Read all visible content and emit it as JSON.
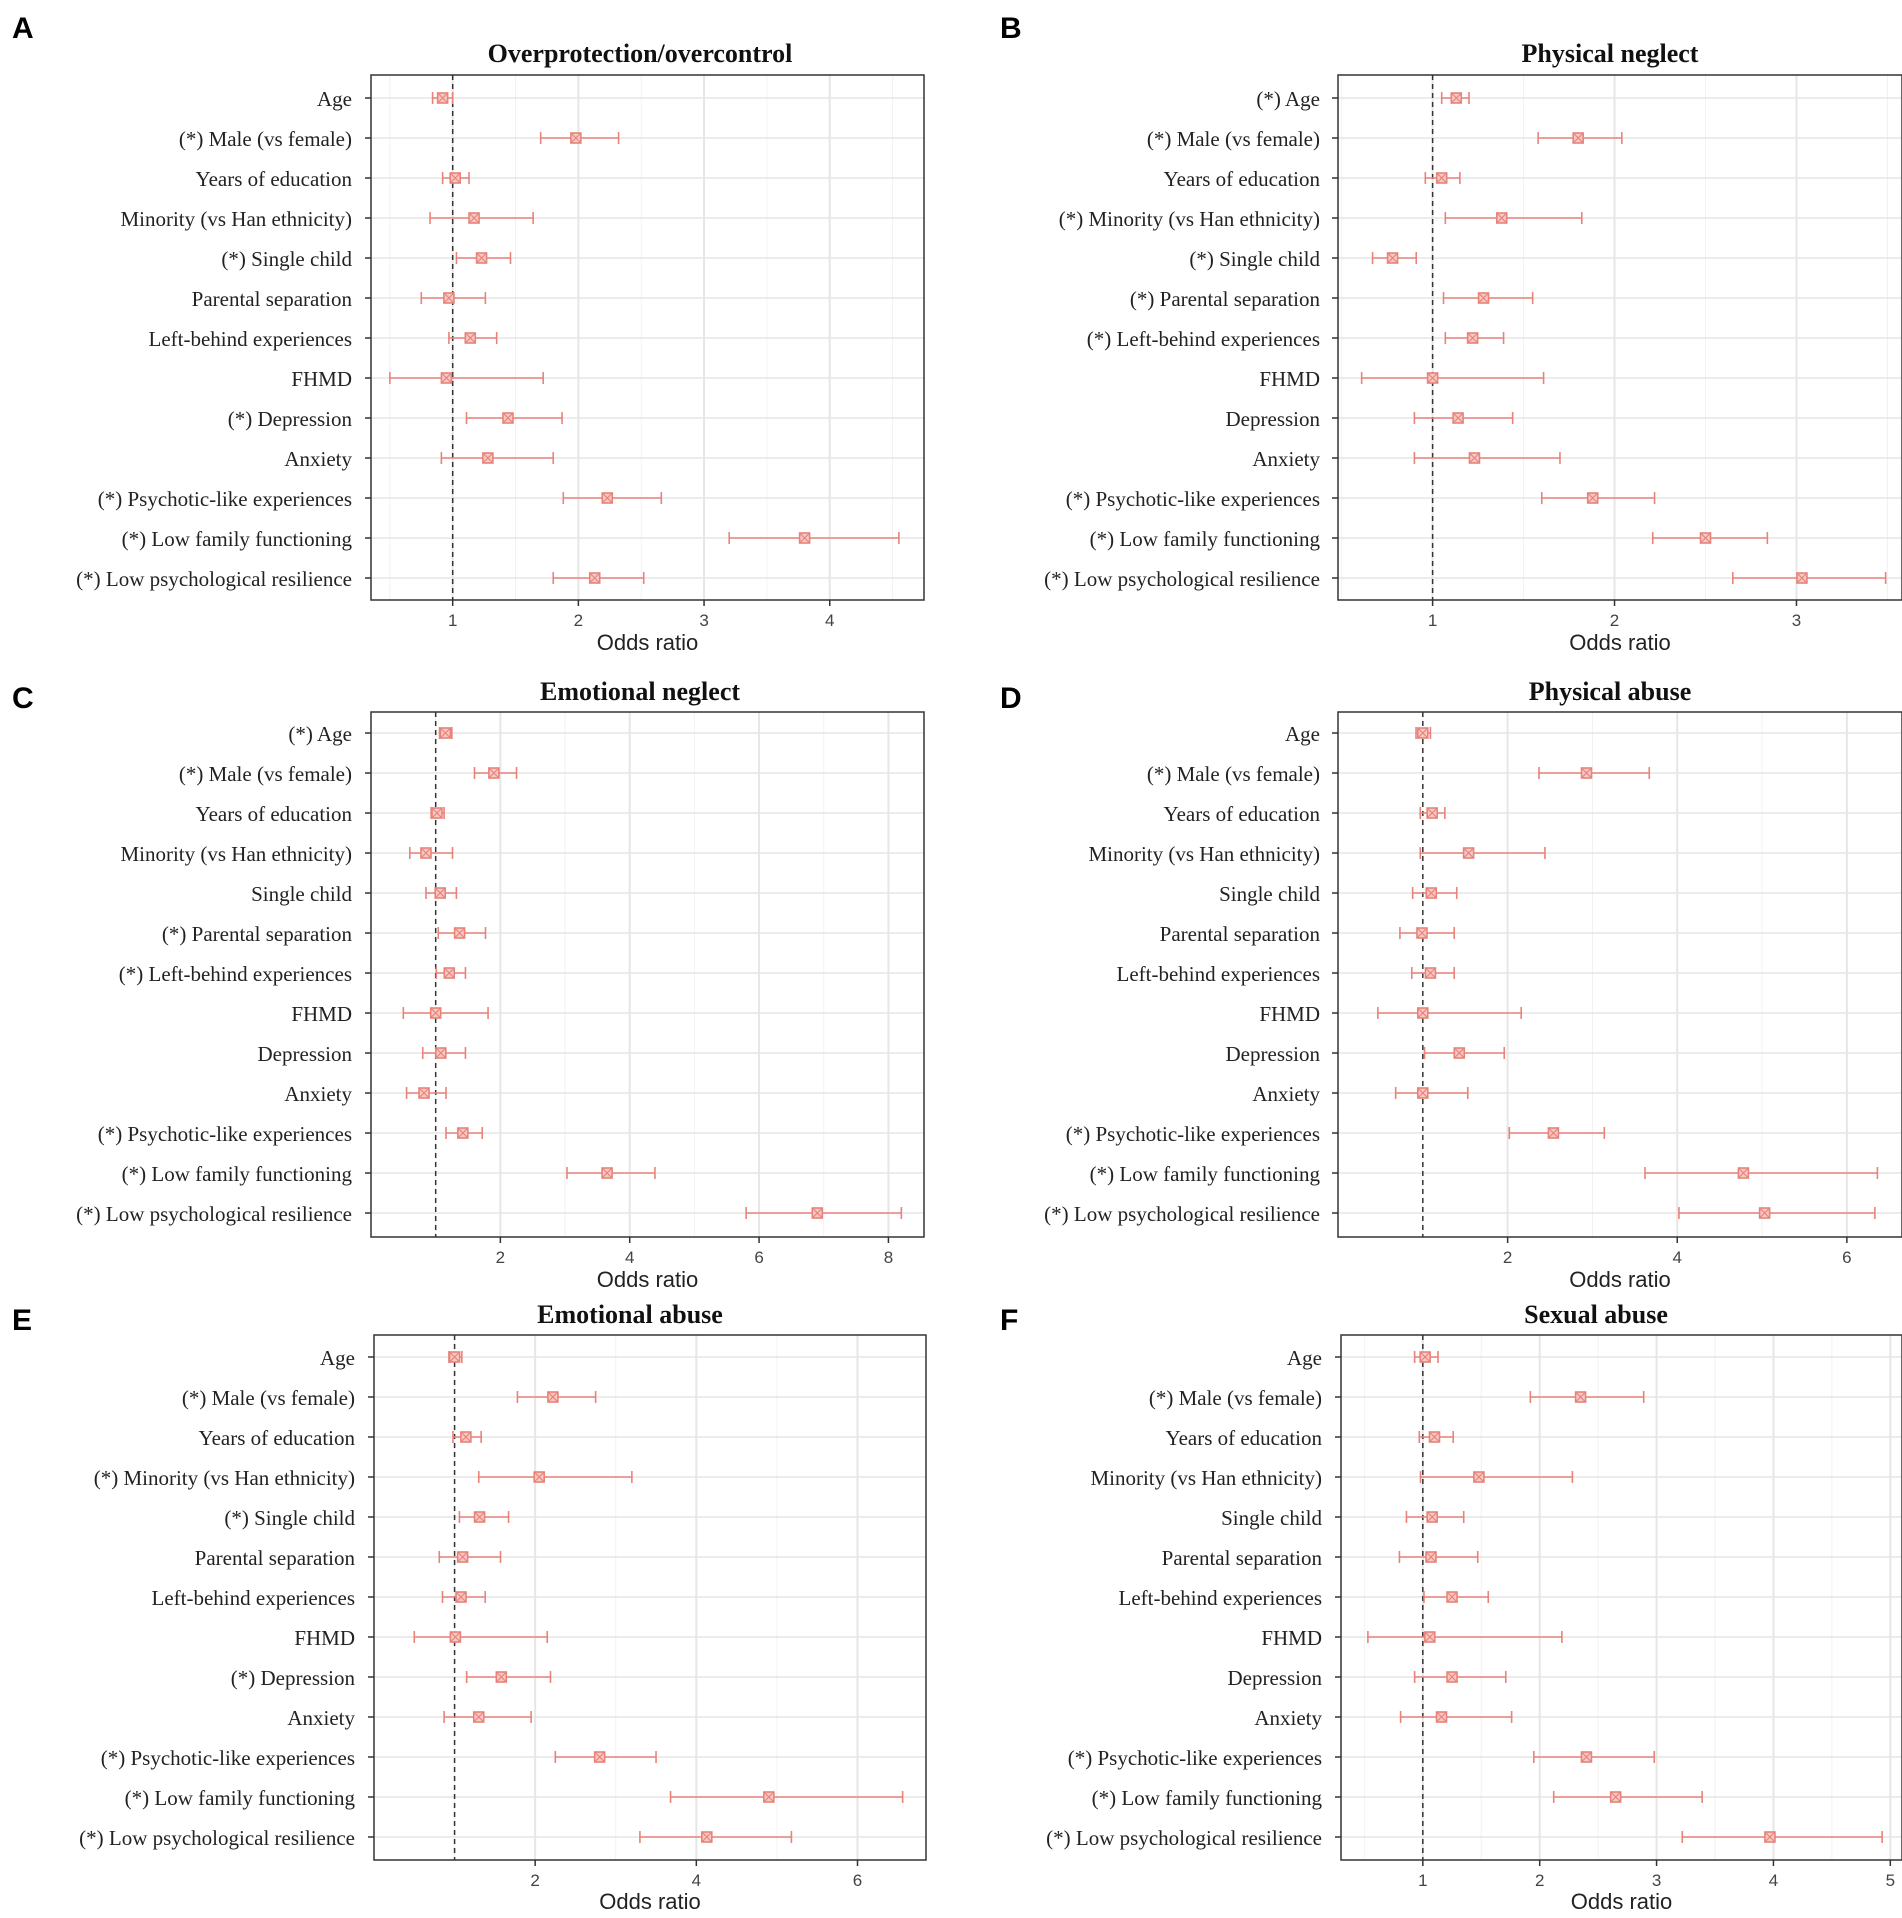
{
  "chart_data": [
    {
      "panel": "A",
      "type": "forest",
      "title": "Overprotection/overcontrol",
      "xlabel": "Odds ratio",
      "xlim": [
        0.35,
        4.75
      ],
      "xticks": [
        1,
        2,
        3,
        4
      ],
      "reference_line": 1,
      "labels": [
        "Age",
        "(*) Male (vs female)",
        "Years of education",
        "Minority (vs Han ethnicity)",
        "(*) Single child",
        "Parental separation",
        "Left-behind experiences",
        "FHMD",
        "(*) Depression",
        "Anxiety",
        "(*) Psychotic-like experiences",
        "(*) Low family functioning",
        "(*) Low psychological resilience"
      ],
      "or": [
        0.92,
        1.98,
        1.02,
        1.17,
        1.23,
        0.97,
        1.14,
        0.95,
        1.44,
        1.28,
        2.23,
        3.8,
        2.13
      ],
      "lower": [
        0.84,
        1.7,
        0.92,
        0.82,
        1.03,
        0.75,
        0.97,
        0.5,
        1.11,
        0.91,
        1.88,
        3.2,
        1.8
      ],
      "upper": [
        1.0,
        2.32,
        1.13,
        1.64,
        1.46,
        1.26,
        1.35,
        1.72,
        1.87,
        1.8,
        2.66,
        4.55,
        2.52
      ]
    },
    {
      "panel": "B",
      "type": "forest",
      "title": "Physical neglect",
      "xlabel": "Odds ratio",
      "xlim": [
        0.48,
        3.58
      ],
      "xticks": [
        1,
        2,
        3
      ],
      "reference_line": 1,
      "labels": [
        "(*) Age",
        "(*) Male (vs female)",
        "Years of education",
        "(*) Minority (vs Han ethnicity)",
        "(*) Single child",
        "(*) Parental separation",
        "(*) Left-behind experiences",
        "FHMD",
        "Depression",
        "Anxiety",
        "(*) Psychotic-like experiences",
        "(*) Low family functioning",
        "(*) Low psychological resilience"
      ],
      "or": [
        1.13,
        1.8,
        1.05,
        1.38,
        0.78,
        1.28,
        1.22,
        1.0,
        1.14,
        1.23,
        1.88,
        2.5,
        3.03
      ],
      "lower": [
        1.05,
        1.58,
        0.96,
        1.07,
        0.67,
        1.06,
        1.07,
        0.61,
        0.9,
        0.9,
        1.6,
        2.21,
        2.65
      ],
      "upper": [
        1.2,
        2.04,
        1.15,
        1.82,
        0.91,
        1.55,
        1.39,
        1.61,
        1.44,
        1.7,
        2.22,
        2.84,
        3.49
      ]
    },
    {
      "panel": "C",
      "type": "forest",
      "title": "Emotional neglect",
      "xlabel": "Odds ratio",
      "xlim": [
        0.0,
        8.55
      ],
      "xticks": [
        2,
        4,
        6,
        8
      ],
      "reference_line": 1,
      "labels": [
        "(*) Age",
        "(*) Male (vs female)",
        "Years of education",
        "Minority (vs Han ethnicity)",
        "Single child",
        "(*) Parental separation",
        "(*) Left-behind experiences",
        "FHMD",
        "Depression",
        "Anxiety",
        "(*) Psychotic-like experiences",
        "(*) Low family functioning",
        "(*) Low psychological resilience"
      ],
      "or": [
        1.15,
        1.9,
        1.02,
        0.85,
        1.07,
        1.37,
        1.21,
        1.0,
        1.08,
        0.82,
        1.42,
        3.65,
        6.9
      ],
      "lower": [
        1.06,
        1.6,
        0.93,
        0.6,
        0.85,
        1.04,
        1.01,
        0.5,
        0.8,
        0.55,
        1.16,
        3.03,
        5.8
      ],
      "upper": [
        1.25,
        2.25,
        1.13,
        1.26,
        1.32,
        1.77,
        1.46,
        1.81,
        1.46,
        1.16,
        1.72,
        4.39,
        8.2
      ]
    },
    {
      "panel": "D",
      "type": "forest",
      "title": "Physical abuse",
      "xlabel": "Odds ratio",
      "xlim": [
        0.0,
        6.65
      ],
      "xticks": [
        2,
        4,
        6
      ],
      "reference_line": 1,
      "labels": [
        "Age",
        "(*) Male (vs female)",
        "Years of education",
        "Minority (vs Han ethnicity)",
        "Single child",
        "Parental separation",
        "Left-behind experiences",
        "FHMD",
        "Depression",
        "Anxiety",
        "(*) Psychotic-like experiences",
        "(*) Low family functioning",
        "(*) Low psychological resilience"
      ],
      "or": [
        1.0,
        2.93,
        1.11,
        1.54,
        1.1,
        0.99,
        1.09,
        1.0,
        1.43,
        1.0,
        2.54,
        4.78,
        5.03
      ],
      "lower": [
        0.92,
        2.37,
        0.97,
        0.97,
        0.88,
        0.73,
        0.87,
        0.47,
        1.02,
        0.68,
        2.02,
        3.62,
        4.02
      ],
      "upper": [
        1.09,
        3.67,
        1.26,
        2.44,
        1.4,
        1.37,
        1.37,
        2.16,
        1.96,
        1.53,
        3.14,
        6.36,
        6.33
      ]
    },
    {
      "panel": "E",
      "type": "forest",
      "title": "Emotional abuse",
      "xlabel": "Odds ratio",
      "xlim": [
        0.0,
        6.85
      ],
      "xticks": [
        2,
        4,
        6
      ],
      "reference_line": 1,
      "labels": [
        "Age",
        "(*) Male (vs female)",
        "Years of education",
        "(*) Minority (vs Han ethnicity)",
        "(*) Single child",
        "Parental separation",
        "Left-behind experiences",
        "FHMD",
        "(*) Depression",
        "Anxiety",
        "(*) Psychotic-like experiences",
        "(*) Low family functioning",
        "(*) Low psychological resilience"
      ],
      "or": [
        1.0,
        2.22,
        1.14,
        2.05,
        1.31,
        1.1,
        1.08,
        1.01,
        1.58,
        1.3,
        2.8,
        4.9,
        4.13
      ],
      "lower": [
        0.93,
        1.78,
        0.98,
        1.3,
        1.06,
        0.81,
        0.85,
        0.5,
        1.15,
        0.87,
        2.25,
        3.68,
        3.3
      ],
      "upper": [
        1.09,
        2.75,
        1.33,
        3.2,
        1.67,
        1.57,
        1.38,
        2.15,
        2.19,
        1.95,
        3.5,
        6.56,
        5.18
      ]
    },
    {
      "panel": "F",
      "type": "forest",
      "title": "Sexual abuse",
      "xlabel": "Odds ratio",
      "xlim": [
        0.3,
        5.1
      ],
      "xticks": [
        1,
        2,
        3,
        4,
        5
      ],
      "reference_line": 1,
      "labels": [
        "Age",
        "(*) Male (vs female)",
        "Years of education",
        "Minority (vs Han ethnicity)",
        "Single child",
        "Parental separation",
        "Left-behind experiences",
        "FHMD",
        "Depression",
        "Anxiety",
        "(*) Psychotic-like experiences",
        "(*) Low family functioning",
        "(*) Low psychological resilience"
      ],
      "or": [
        1.02,
        2.35,
        1.1,
        1.48,
        1.08,
        1.07,
        1.25,
        1.06,
        1.25,
        1.16,
        2.4,
        2.65,
        3.97
      ],
      "lower": [
        0.93,
        1.92,
        0.97,
        0.98,
        0.86,
        0.8,
        1.01,
        0.53,
        0.93,
        0.81,
        1.95,
        2.12,
        3.22
      ],
      "upper": [
        1.13,
        2.89,
        1.26,
        2.28,
        1.35,
        1.47,
        1.56,
        2.19,
        1.71,
        1.76,
        2.98,
        3.39,
        4.93
      ]
    }
  ]
}
